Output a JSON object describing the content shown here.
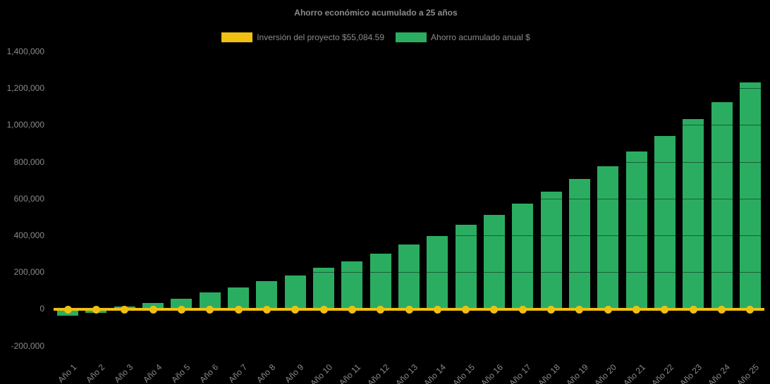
{
  "title": "Ahorro económico acumulado a 25 años",
  "legend": {
    "investment": {
      "label": "Inversión del proyecto $55,084.59",
      "color": "#EFC011"
    },
    "savings": {
      "label": "Ahorro acumulado anual $",
      "color": "#2BAD61"
    }
  },
  "chart_data": {
    "type": "bar",
    "title": "Ahorro económico acumulado a 25 años",
    "categories": [
      "Año 1",
      "Año 2",
      "Año 3",
      "Año 4",
      "Año 5",
      "Año 6",
      "Año 7",
      "Año 8",
      "Año 9",
      "Año 10",
      "Año 11",
      "Año 12",
      "Año 13",
      "Año 14",
      "Año 15",
      "Año 16",
      "Año 17",
      "Año 18",
      "Año 19",
      "Año 20",
      "Año 21",
      "Año 22",
      "Año 23",
      "Año 24",
      "Año 25"
    ],
    "series": [
      {
        "name": "Ahorro acumulado anual $",
        "type": "bar",
        "color": "#2BAD61",
        "values": [
          -38000,
          -21000,
          13000,
          33000,
          57000,
          88000,
          115000,
          150000,
          183000,
          222000,
          260000,
          302000,
          350000,
          397000,
          457000,
          510000,
          571000,
          639000,
          707000,
          777000,
          856000,
          940000,
          1031000,
          1126000,
          1230000
        ]
      },
      {
        "name": "Inversión del proyecto $55,084.59",
        "type": "line",
        "color": "#EFC011",
        "marker": "circle",
        "investment_amount": 55084.59,
        "plotted_constant_value": 0
      }
    ],
    "y_axis": {
      "min": -200000,
      "max": 1400000,
      "step": 200000,
      "tick_labels": [
        "1,400,000",
        "1,200,000",
        "1,000,000",
        "800,000",
        "600,000",
        "400,000",
        "200,000",
        "0",
        "-200,000"
      ]
    },
    "x_axis": {
      "label_rotation_deg": -45
    },
    "legend_position": "top",
    "grid": "faint dark horizontal gridlines visible over bars",
    "background_color": "#000000",
    "text_color": "#8a8a8a"
  }
}
